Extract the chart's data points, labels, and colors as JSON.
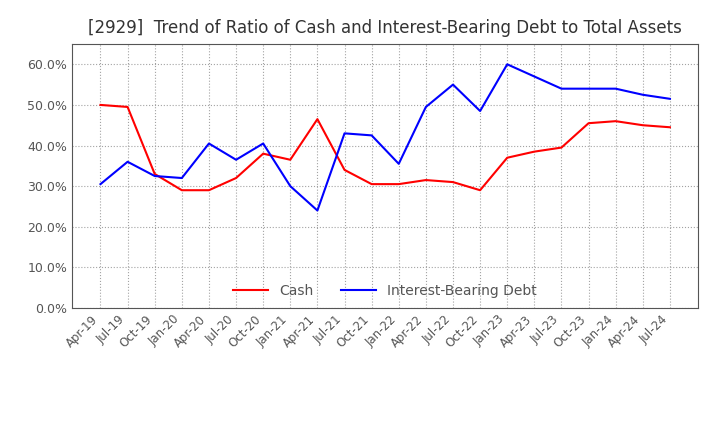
{
  "title": "[2929]  Trend of Ratio of Cash and Interest-Bearing Debt to Total Assets",
  "x_labels": [
    "Apr-19",
    "Jul-19",
    "Oct-19",
    "Jan-20",
    "Apr-20",
    "Jul-20",
    "Oct-20",
    "Jan-21",
    "Apr-21",
    "Jul-21",
    "Oct-21",
    "Jan-22",
    "Apr-22",
    "Jul-22",
    "Oct-22",
    "Jan-23",
    "Apr-23",
    "Jul-23",
    "Oct-23",
    "Jan-24",
    "Apr-24",
    "Jul-24"
  ],
  "cash": [
    50.0,
    49.5,
    33.0,
    29.0,
    29.0,
    32.0,
    38.0,
    36.5,
    46.5,
    34.0,
    30.5,
    30.5,
    31.5,
    31.0,
    29.0,
    37.0,
    38.5,
    39.5,
    45.5,
    46.0,
    45.0,
    44.5
  ],
  "interest_bearing_debt": [
    30.5,
    36.0,
    32.5,
    32.0,
    40.5,
    36.5,
    40.5,
    30.0,
    24.0,
    43.0,
    42.5,
    35.5,
    49.5,
    55.0,
    48.5,
    60.0,
    57.0,
    54.0,
    54.0,
    54.0,
    52.5,
    51.5
  ],
  "cash_color": "#FF0000",
  "ibd_color": "#0000FF",
  "ylim": [
    0,
    65
  ],
  "yticks": [
    0.0,
    10.0,
    20.0,
    30.0,
    40.0,
    50.0,
    60.0
  ],
  "background_color": "#FFFFFF",
  "grid_color": "#999999",
  "title_fontsize": 12,
  "legend_cash": "Cash",
  "legend_ibd": "Interest-Bearing Debt"
}
